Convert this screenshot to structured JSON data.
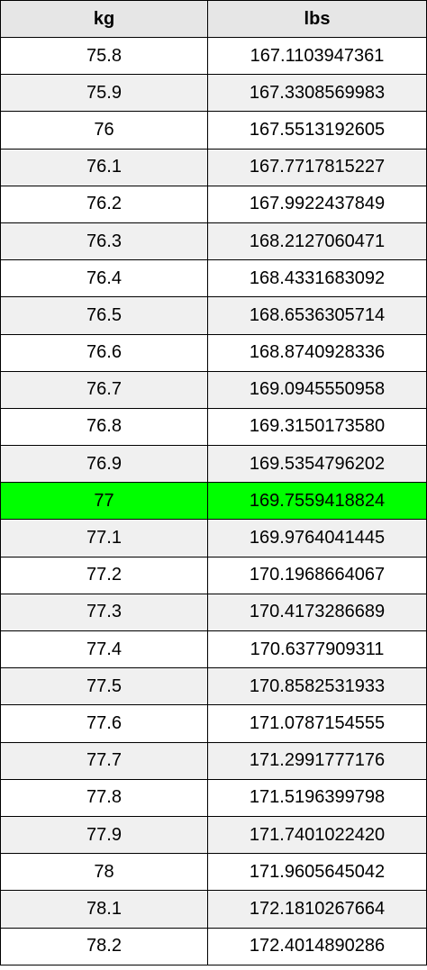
{
  "table": {
    "headers": {
      "kg": "kg",
      "lbs": "lbs"
    },
    "highlight_color": "#00ff00",
    "highlight_kg": "77",
    "rows": [
      {
        "kg": "75.8",
        "lbs": "167.1103947361"
      },
      {
        "kg": "75.9",
        "lbs": "167.3308569983"
      },
      {
        "kg": "76",
        "lbs": "167.5513192605"
      },
      {
        "kg": "76.1",
        "lbs": "167.7717815227"
      },
      {
        "kg": "76.2",
        "lbs": "167.9922437849"
      },
      {
        "kg": "76.3",
        "lbs": "168.2127060471"
      },
      {
        "kg": "76.4",
        "lbs": "168.4331683092"
      },
      {
        "kg": "76.5",
        "lbs": "168.6536305714"
      },
      {
        "kg": "76.6",
        "lbs": "168.8740928336"
      },
      {
        "kg": "76.7",
        "lbs": "169.0945550958"
      },
      {
        "kg": "76.8",
        "lbs": "169.3150173580"
      },
      {
        "kg": "76.9",
        "lbs": "169.5354796202"
      },
      {
        "kg": "77",
        "lbs": "169.7559418824"
      },
      {
        "kg": "77.1",
        "lbs": "169.9764041445"
      },
      {
        "kg": "77.2",
        "lbs": "170.1968664067"
      },
      {
        "kg": "77.3",
        "lbs": "170.4173286689"
      },
      {
        "kg": "77.4",
        "lbs": "170.6377909311"
      },
      {
        "kg": "77.5",
        "lbs": "170.8582531933"
      },
      {
        "kg": "77.6",
        "lbs": "171.0787154555"
      },
      {
        "kg": "77.7",
        "lbs": "171.2991777176"
      },
      {
        "kg": "77.8",
        "lbs": "171.5196399798"
      },
      {
        "kg": "77.9",
        "lbs": "171.7401022420"
      },
      {
        "kg": "78",
        "lbs": "171.9605645042"
      },
      {
        "kg": "78.1",
        "lbs": "172.1810267664"
      },
      {
        "kg": "78.2",
        "lbs": "172.4014890286"
      }
    ]
  }
}
